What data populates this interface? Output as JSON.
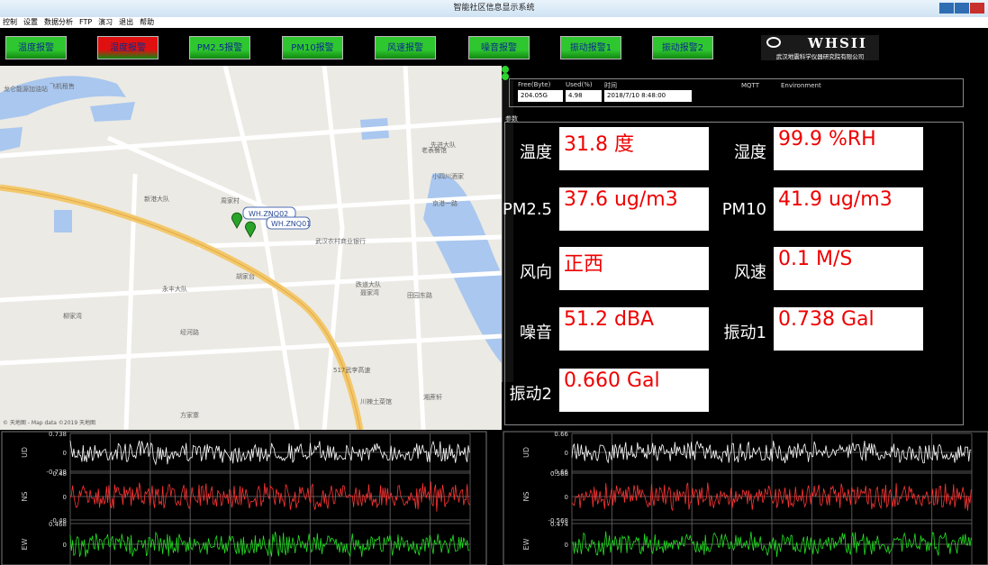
{
  "window": {
    "title": "智能社区信息显示系统"
  },
  "menu": [
    "控制",
    "设置",
    "数据分析",
    "FTP",
    "演习",
    "退出",
    "帮助"
  ],
  "alarms": [
    {
      "label": "温度报警",
      "color": "#2fc72f"
    },
    {
      "label": "湿度报警",
      "color": "#e01010"
    },
    {
      "label": "PM2.5报警",
      "color": "#2fc72f"
    },
    {
      "label": "PM10报警",
      "color": "#2fc72f"
    },
    {
      "label": "风速报警",
      "color": "#2fc72f"
    },
    {
      "label": "噪音报警",
      "color": "#2fc72f"
    },
    {
      "label": "振动报警1",
      "color": "#2fc72f"
    },
    {
      "label": "振动报警2",
      "color": "#2fc72f"
    }
  ],
  "logo": {
    "name": "WHSII",
    "company": "武汉地震科学仪器研究院有限公司"
  },
  "map": {
    "labels": [
      "龙仑能源加油站",
      "飞机租售",
      "新港大队",
      "周家村",
      "老表餐馆",
      "小四川酒家",
      "武汉农村商业银行",
      "先进大队",
      "京港一路",
      "永丰大队",
      "柳家湾",
      "胡家台",
      "跌道大队",
      "聂家湾",
      "田园东路",
      "方家寨",
      "经河路",
      "517武李高速",
      "川辣土菜馆",
      "湘蔗轩"
    ],
    "markers": [
      "WH.ZNQ02",
      "WH.ZNQ01"
    ],
    "credit": "© 天地图 - Map data ©2019 天地图"
  },
  "status": {
    "free_label": "Free(Byte)",
    "free": "204.05G",
    "used_label": "Used(%)",
    "used": "4.98",
    "time_label": "时间",
    "time": "2018/7/10 8:48:00",
    "indicators": [
      "MQTT",
      "Environment"
    ]
  },
  "params": {
    "title": "参数",
    "items": [
      {
        "label": "温度",
        "value": "31.8 度"
      },
      {
        "label": "湿度",
        "value": "99.9 %RH"
      },
      {
        "label": "PM2.5",
        "value": "37.6 ug/m3"
      },
      {
        "label": "PM10",
        "value": "41.9 ug/m3"
      },
      {
        "label": "风向",
        "value": "正西"
      },
      {
        "label": "风速",
        "value": "0.1 M/S"
      },
      {
        "label": "噪音",
        "value": "51.2 dBA"
      },
      {
        "label": "振动1",
        "value": "0.738 Gal"
      },
      {
        "label": "振动2",
        "value": "0.660 Gal"
      }
    ]
  },
  "waveforms": [
    {
      "channels": [
        {
          "name": "UD",
          "color": "#ffffff",
          "ticks": [
            "0.738",
            "0",
            "-0.738"
          ]
        },
        {
          "name": "NS",
          "color": "#ff3434",
          "ticks": [
            "0.48",
            "0",
            "-0.48"
          ]
        },
        {
          "name": "EW",
          "color": "#22e022",
          "ticks": [
            "0.468",
            "0"
          ]
        }
      ]
    },
    {
      "channels": [
        {
          "name": "UD",
          "color": "#ffffff",
          "ticks": [
            "0.66",
            "0",
            "-0.66"
          ]
        },
        {
          "name": "NS",
          "color": "#ff3434",
          "ticks": [
            "0.568",
            "0",
            "-0.568"
          ]
        },
        {
          "name": "EW",
          "color": "#22e022",
          "ticks": [
            "0.474",
            "0"
          ]
        }
      ]
    }
  ]
}
